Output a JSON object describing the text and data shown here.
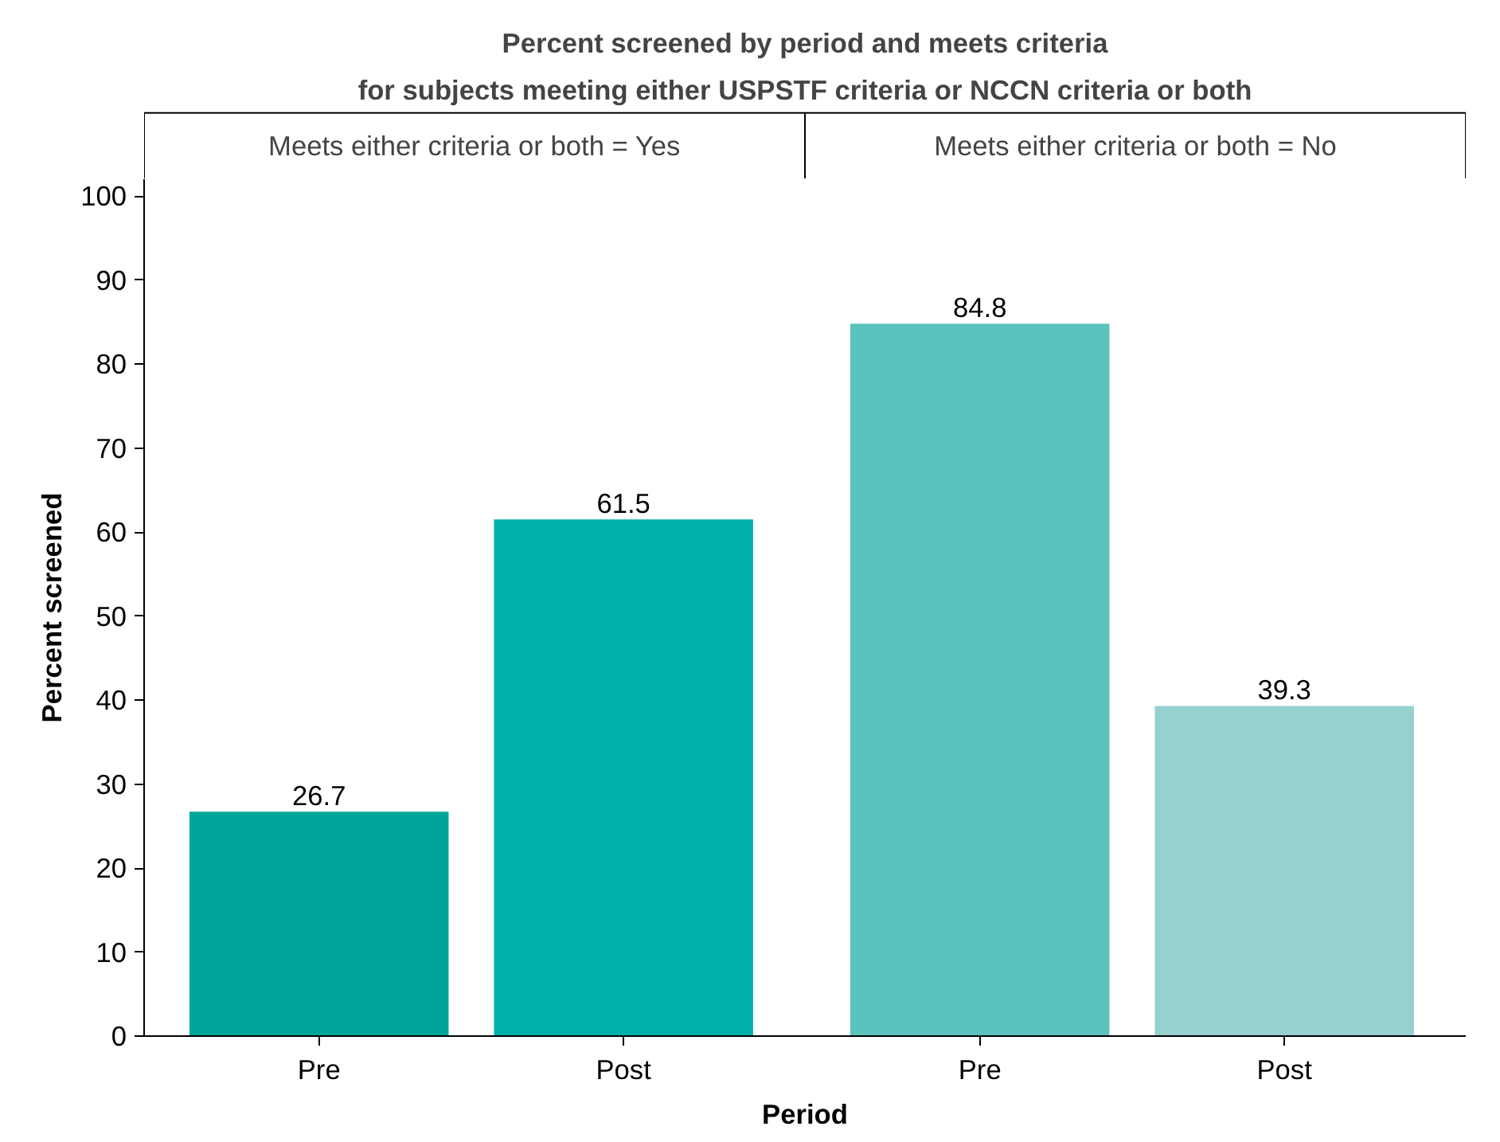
{
  "chart_data": {
    "type": "bar",
    "title": "Percent screened by period and meets criteria\nfor subjects meeting either USPSTF criteria or NCCN criteria or both",
    "categories": [
      "Pre",
      "Post",
      "Pre",
      "Post"
    ],
    "values": [
      26.7,
      61.5,
      84.8,
      39.3
    ],
    "colors": [
      "#00a599",
      "#00b0a8",
      "#5bc2bd",
      "#96d0cf"
    ],
    "annotations": [
      "Meets either criteria or both = Yes",
      "Meets either criteria or both = No"
    ],
    "xlabel": "Period",
    "ylabel": "Percent screened",
    "ylim": [
      0,
      102
    ],
    "yticks": [
      0,
      10,
      20,
      30,
      40,
      50,
      60,
      70,
      80,
      90,
      100
    ],
    "data_labels": true,
    "grid": false
  }
}
